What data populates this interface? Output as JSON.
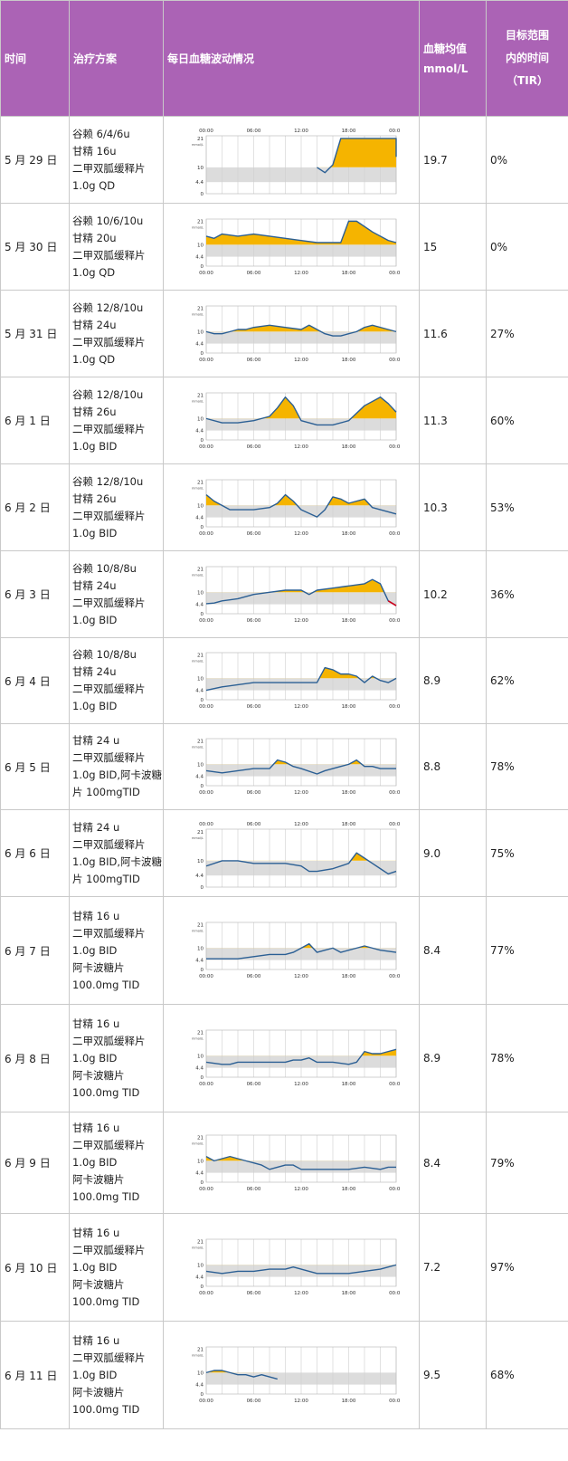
{
  "header": {
    "col_time": "时间",
    "col_plan": "治疗方案",
    "col_graph": "每日血糖波动情况",
    "col_avg_line1": "血糖均值",
    "col_avg_line2": "mmol/L",
    "col_tir_line1": "目标范围",
    "col_tir_line2": "内的时间",
    "col_tir_line3": "（TIR）"
  },
  "chart_axis": {
    "y_ticks": [
      "21",
      "10",
      "4.4",
      "0"
    ],
    "y_unit": "mmol/L",
    "x_ticks": [
      "00:00",
      "06:00",
      "12:00",
      "18:00",
      "00:00"
    ],
    "target_range": [
      4.4,
      10
    ],
    "high_color": "#f5b400",
    "line_color": "#2b5f94",
    "low_color": "#d0021b",
    "band_color": "#dcdcdc"
  },
  "rows": [
    {
      "date": "5 月 29 日",
      "plan": [
        "谷赖 6/4/6u",
        "甘精 16u",
        "二甲双胍缓释片",
        "1.0g QD"
      ],
      "avg": "19.7",
      "tir": "0%"
    },
    {
      "date": "5 月 30 日",
      "plan": [
        "谷赖 10/6/10u",
        "甘精 20u",
        "二甲双胍缓释片",
        "1.0g QD"
      ],
      "avg": "15",
      "tir": "0%"
    },
    {
      "date": "5 月 31 日",
      "plan": [
        "谷赖 12/8/10u",
        "甘精 24u",
        "二甲双胍缓释片",
        "1.0g QD"
      ],
      "avg": "11.6",
      "tir": "27%"
    },
    {
      "date": "6 月 1 日",
      "plan": [
        "谷赖 12/8/10u",
        "甘精 26u",
        "二甲双胍缓释片",
        "1.0g BID"
      ],
      "avg": "11.3",
      "tir": "60%"
    },
    {
      "date": "6 月 2 日",
      "plan": [
        "谷赖 12/8/10u",
        "甘精 26u",
        "二甲双胍缓释片",
        "1.0g BID"
      ],
      "avg": "10.3",
      "tir": "53%"
    },
    {
      "date": "6 月 3 日",
      "plan": [
        "谷赖 10/8/8u",
        "甘精 24u",
        "二甲双胍缓释片",
        "1.0g BID"
      ],
      "avg": "10.2",
      "tir": "36%"
    },
    {
      "date": "6 月 4 日",
      "plan": [
        "谷赖 10/8/8u",
        "甘精 24u",
        "二甲双胍缓释片",
        "1.0g BID"
      ],
      "avg": "8.9",
      "tir": "62%"
    },
    {
      "date": "6 月 5 日",
      "plan": [
        "甘精 24 u",
        "二甲双胍缓释片",
        "1.0g BID,阿卡波糖",
        "片 100mgTID"
      ],
      "avg": "8.8",
      "tir": "78%"
    },
    {
      "date": "6 月 6 日",
      "plan": [
        "甘精 24 u",
        "二甲双胍缓释片",
        "1.0g BID,阿卡波糖",
        "片 100mgTID"
      ],
      "avg": "9.0",
      "tir": "75%"
    },
    {
      "date": "6 月 7 日",
      "plan": [
        "甘精 16 u",
        "二甲双胍缓释片",
        "1.0g BID",
        "阿卡波糖片",
        "100.0mg TID"
      ],
      "avg": "8.4",
      "tir": "77%"
    },
    {
      "date": "6 月 8 日",
      "plan": [
        "甘精 16 u",
        "二甲双胍缓释片",
        "1.0g BID",
        "阿卡波糖片",
        "100.0mg TID"
      ],
      "avg": "8.9",
      "tir": "78%"
    },
    {
      "date": "6 月 9 日",
      "plan": [
        "甘精 16 u",
        "二甲双胍缓释片",
        "1.0g BID",
        "阿卡波糖片",
        "100.0mg TID"
      ],
      "avg": "8.4",
      "tir": "79%"
    },
    {
      "date": "6 月 10 日",
      "plan": [
        "甘精 16 u",
        "二甲双胍缓释片",
        "1.0g BID",
        "阿卡波糖片",
        "100.0mg TID"
      ],
      "avg": "7.2",
      "tir": "97%"
    },
    {
      "date": "6 月 11 日",
      "plan": [
        "甘精 16 u",
        "二甲双胍缓释片",
        "1.0g BID",
        "阿卡波糖片",
        "100.0mg TID"
      ],
      "avg": "9.5",
      "tir": "68%"
    }
  ],
  "chart_data": [
    {
      "type": "line",
      "x_unit": "hour",
      "y": [
        [
          14,
          10
        ],
        [
          15,
          8
        ],
        [
          16,
          11
        ],
        [
          17,
          21
        ],
        [
          24,
          21
        ],
        [
          24,
          14
        ]
      ]
    },
    {
      "type": "line",
      "x_unit": "hour",
      "y": [
        [
          0,
          14
        ],
        [
          1,
          13
        ],
        [
          2,
          15
        ],
        [
          4,
          14
        ],
        [
          6,
          15
        ],
        [
          8,
          14
        ],
        [
          10,
          13
        ],
        [
          12,
          12
        ],
        [
          14,
          11
        ],
        [
          16,
          11
        ],
        [
          17,
          11
        ],
        [
          18,
          21
        ],
        [
          19,
          21
        ],
        [
          21,
          16
        ],
        [
          23,
          12
        ],
        [
          24,
          11
        ]
      ]
    },
    {
      "type": "line",
      "x_unit": "hour",
      "y": [
        [
          0,
          10
        ],
        [
          1,
          9
        ],
        [
          2,
          9
        ],
        [
          3,
          10
        ],
        [
          4,
          11
        ],
        [
          5,
          11
        ],
        [
          6,
          12
        ],
        [
          8,
          13
        ],
        [
          10,
          12
        ],
        [
          12,
          11
        ],
        [
          13,
          13
        ],
        [
          14,
          11
        ],
        [
          15,
          9
        ],
        [
          16,
          8
        ],
        [
          17,
          8
        ],
        [
          18,
          9
        ],
        [
          19,
          10
        ],
        [
          20,
          12
        ],
        [
          21,
          13
        ],
        [
          22,
          12
        ],
        [
          24,
          10
        ]
      ]
    },
    {
      "type": "line",
      "x_unit": "hour",
      "y": [
        [
          0,
          10
        ],
        [
          2,
          8
        ],
        [
          4,
          8
        ],
        [
          6,
          9
        ],
        [
          8,
          11
        ],
        [
          9,
          15
        ],
        [
          10,
          20
        ],
        [
          11,
          16
        ],
        [
          12,
          9
        ],
        [
          14,
          7
        ],
        [
          16,
          7
        ],
        [
          18,
          9
        ],
        [
          20,
          16
        ],
        [
          22,
          20
        ],
        [
          23,
          17
        ],
        [
          24,
          13
        ]
      ]
    },
    {
      "type": "line",
      "x_unit": "hour",
      "y": [
        [
          0,
          15
        ],
        [
          1,
          12
        ],
        [
          2,
          10
        ],
        [
          3,
          8
        ],
        [
          6,
          8
        ],
        [
          8,
          9
        ],
        [
          9,
          11
        ],
        [
          10,
          15
        ],
        [
          11,
          12
        ],
        [
          12,
          8
        ],
        [
          14,
          4.6
        ],
        [
          15,
          8
        ],
        [
          16,
          14
        ],
        [
          17,
          13
        ],
        [
          18,
          11
        ],
        [
          19,
          12
        ],
        [
          20,
          13
        ],
        [
          21,
          9
        ],
        [
          23,
          7
        ],
        [
          24,
          6
        ]
      ]
    },
    {
      "type": "line",
      "x_unit": "hour",
      "y": [
        [
          0,
          4.7
        ],
        [
          1,
          5
        ],
        [
          2,
          6
        ],
        [
          4,
          7
        ],
        [
          6,
          9
        ],
        [
          8,
          10
        ],
        [
          10,
          11
        ],
        [
          12,
          11
        ],
        [
          13,
          9
        ],
        [
          14,
          11
        ],
        [
          16,
          12
        ],
        [
          18,
          13
        ],
        [
          20,
          14
        ],
        [
          21,
          16
        ],
        [
          22,
          14
        ],
        [
          23,
          6
        ],
        [
          24,
          3.8
        ]
      ]
    },
    {
      "type": "line",
      "x_unit": "hour",
      "y": [
        [
          0,
          4.4
        ],
        [
          2,
          6
        ],
        [
          4,
          7
        ],
        [
          6,
          8
        ],
        [
          8,
          8
        ],
        [
          10,
          8
        ],
        [
          12,
          8
        ],
        [
          14,
          8
        ],
        [
          15,
          15
        ],
        [
          16,
          14
        ],
        [
          17,
          12
        ],
        [
          18,
          12
        ],
        [
          19,
          11
        ],
        [
          20,
          8
        ],
        [
          21,
          11
        ],
        [
          22,
          9
        ],
        [
          23,
          8
        ],
        [
          24,
          10
        ]
      ]
    },
    {
      "type": "line",
      "x_unit": "hour",
      "y": [
        [
          0,
          7
        ],
        [
          2,
          6
        ],
        [
          4,
          7
        ],
        [
          6,
          8
        ],
        [
          8,
          8
        ],
        [
          9,
          12
        ],
        [
          10,
          11
        ],
        [
          11,
          9
        ],
        [
          12,
          8
        ],
        [
          14,
          5.5
        ],
        [
          15,
          7
        ],
        [
          16,
          8
        ],
        [
          17,
          9
        ],
        [
          18,
          10
        ],
        [
          19,
          12
        ],
        [
          20,
          9
        ],
        [
          21,
          9
        ],
        [
          22,
          8
        ],
        [
          24,
          8
        ]
      ]
    },
    {
      "type": "line",
      "x_unit": "hour",
      "y": [
        [
          0,
          8
        ],
        [
          2,
          10
        ],
        [
          4,
          10
        ],
        [
          6,
          9
        ],
        [
          8,
          9
        ],
        [
          10,
          9
        ],
        [
          12,
          8
        ],
        [
          13,
          6
        ],
        [
          14,
          6
        ],
        [
          16,
          7
        ],
        [
          18,
          9
        ],
        [
          19,
          13
        ],
        [
          20,
          11
        ],
        [
          21,
          9
        ],
        [
          22,
          7
        ],
        [
          23,
          5
        ],
        [
          24,
          6
        ]
      ]
    },
    {
      "type": "line",
      "x_unit": "hour",
      "y": [
        [
          0,
          5
        ],
        [
          2,
          5
        ],
        [
          4,
          5
        ],
        [
          6,
          6
        ],
        [
          8,
          7
        ],
        [
          10,
          7
        ],
        [
          11,
          8
        ],
        [
          12,
          10
        ],
        [
          13,
          12
        ],
        [
          14,
          8
        ],
        [
          15,
          9
        ],
        [
          16,
          10
        ],
        [
          17,
          8
        ],
        [
          18,
          9
        ],
        [
          19,
          10
        ],
        [
          20,
          11
        ],
        [
          21,
          10
        ],
        [
          22,
          9
        ],
        [
          24,
          8
        ]
      ]
    },
    {
      "type": "line",
      "x_unit": "hour",
      "y": [
        [
          0,
          7
        ],
        [
          2,
          6
        ],
        [
          3,
          6
        ],
        [
          4,
          7
        ],
        [
          6,
          7
        ],
        [
          8,
          7
        ],
        [
          10,
          7
        ],
        [
          11,
          8
        ],
        [
          12,
          8
        ],
        [
          13,
          9
        ],
        [
          14,
          7
        ],
        [
          16,
          7
        ],
        [
          18,
          6
        ],
        [
          19,
          7
        ],
        [
          20,
          12
        ],
        [
          21,
          11
        ],
        [
          22,
          11
        ],
        [
          23,
          12
        ],
        [
          24,
          13
        ]
      ]
    },
    {
      "type": "line",
      "x_unit": "hour",
      "y": [
        [
          0,
          12
        ],
        [
          1,
          10
        ],
        [
          2,
          11
        ],
        [
          3,
          12
        ],
        [
          4,
          11
        ],
        [
          5,
          10
        ],
        [
          6,
          9
        ],
        [
          7,
          8
        ],
        [
          8,
          6
        ],
        [
          9,
          7
        ],
        [
          10,
          8
        ],
        [
          11,
          8
        ],
        [
          12,
          6
        ],
        [
          14,
          6
        ],
        [
          16,
          6
        ],
        [
          18,
          6
        ],
        [
          20,
          7
        ],
        [
          22,
          6
        ],
        [
          23,
          7
        ],
        [
          24,
          7
        ]
      ]
    },
    {
      "type": "line",
      "x_unit": "hour",
      "y": [
        [
          0,
          7
        ],
        [
          2,
          6
        ],
        [
          4,
          7
        ],
        [
          6,
          7
        ],
        [
          8,
          8
        ],
        [
          10,
          8
        ],
        [
          11,
          9
        ],
        [
          12,
          8
        ],
        [
          14,
          6
        ],
        [
          16,
          6
        ],
        [
          18,
          6
        ],
        [
          20,
          7
        ],
        [
          22,
          8
        ],
        [
          23,
          9
        ],
        [
          24,
          10
        ]
      ]
    },
    {
      "type": "line",
      "x_unit": "hour",
      "y": [
        [
          0,
          10
        ],
        [
          1,
          11
        ],
        [
          2,
          11
        ],
        [
          3,
          10
        ],
        [
          4,
          9
        ],
        [
          5,
          9
        ],
        [
          6,
          8
        ],
        [
          7,
          9
        ],
        [
          8,
          8
        ],
        [
          9,
          7
        ]
      ]
    }
  ]
}
